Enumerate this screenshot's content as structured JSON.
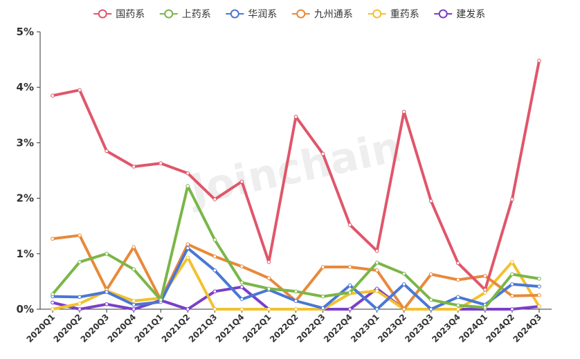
{
  "chart_data": {
    "type": "line",
    "title": "",
    "xlabel": "",
    "ylabel": "",
    "ylim": [
      0,
      5
    ],
    "y_ticks": [
      "0%",
      "1%",
      "2%",
      "3%",
      "4%",
      "5%"
    ],
    "legend_position": "top-center",
    "grid": false,
    "watermark": "Joinchain",
    "categories": [
      "2020Q1",
      "2020Q2",
      "2020Q3",
      "2020Q4",
      "2021Q1",
      "2021Q2",
      "2021Q3",
      "2021Q4",
      "2022Q1",
      "2022Q2",
      "2022Q3",
      "2022Q4",
      "2023Q1",
      "2023Q2",
      "2023Q3",
      "2023Q4",
      "2024Q1",
      "2024Q2",
      "2024Q3"
    ],
    "series": [
      {
        "name": "国药系",
        "color": "#e0566a",
        "values": [
          3.85,
          3.95,
          2.85,
          2.57,
          2.63,
          2.45,
          1.98,
          2.3,
          0.85,
          3.47,
          2.8,
          1.52,
          1.05,
          3.56,
          1.95,
          0.83,
          0.35,
          1.98,
          4.48
        ]
      },
      {
        "name": "上药系",
        "color": "#7ab648",
        "values": [
          0.27,
          0.85,
          1.0,
          0.72,
          0.17,
          2.22,
          1.25,
          0.48,
          0.37,
          0.32,
          0.23,
          0.3,
          0.84,
          0.64,
          0.17,
          0.07,
          0.03,
          0.63,
          0.55
        ]
      },
      {
        "name": "华润系",
        "color": "#4a77d4",
        "values": [
          0.23,
          0.22,
          0.31,
          0.08,
          0.13,
          1.1,
          0.7,
          0.18,
          0.35,
          0.15,
          0.02,
          0.43,
          0.0,
          0.45,
          0.0,
          0.22,
          0.08,
          0.45,
          0.41
        ]
      },
      {
        "name": "九州通系",
        "color": "#e8893a",
        "values": [
          1.27,
          1.33,
          0.35,
          1.12,
          0.17,
          1.17,
          0.95,
          0.77,
          0.56,
          0.15,
          0.76,
          0.76,
          0.7,
          0.0,
          0.63,
          0.53,
          0.6,
          0.24,
          0.25
        ]
      },
      {
        "name": "重药系",
        "color": "#f2c12e",
        "values": [
          0.0,
          0.1,
          0.33,
          0.15,
          0.2,
          0.93,
          0.0,
          0.0,
          0.0,
          0.0,
          0.0,
          0.28,
          0.33,
          0.0,
          0.0,
          0.0,
          0.3,
          0.85,
          0.05
        ]
      },
      {
        "name": "建发系",
        "color": "#7a3fc7",
        "values": [
          0.12,
          0.0,
          0.09,
          0.0,
          0.16,
          0.0,
          0.32,
          0.4,
          0.0,
          0.0,
          0.0,
          0.0,
          0.37,
          0.0,
          0.0,
          0.0,
          0.0,
          0.0,
          0.05
        ]
      }
    ]
  }
}
